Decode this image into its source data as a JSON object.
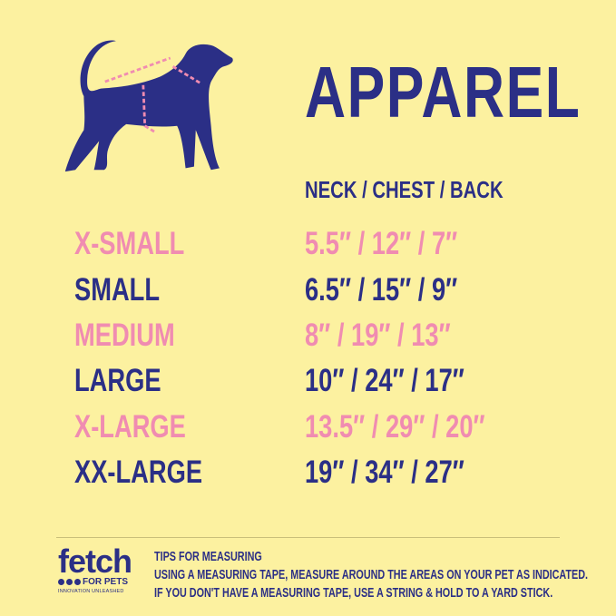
{
  "title": "APPAREL",
  "columns_header": "NECK / CHEST / BACK",
  "colors": {
    "background": "#fcf1a0",
    "navy": "#2b2f86",
    "pink": "#f08cb1"
  },
  "sizes": [
    {
      "size": "X-SMALL",
      "measurements": "5.5″ / 12″ / 7″",
      "color": "pink"
    },
    {
      "size": "SMALL",
      "measurements": "6.5″ / 15″ / 9″",
      "color": "navy"
    },
    {
      "size": "MEDIUM",
      "measurements": "8″ / 19″ / 13″",
      "color": "pink"
    },
    {
      "size": "LARGE",
      "measurements": "10″ / 24″ / 17″",
      "color": "navy"
    },
    {
      "size": "X-LARGE",
      "measurements": "13.5″ / 29″ / 20″",
      "color": "pink"
    },
    {
      "size": "XX-LARGE",
      "measurements": "19″ / 34″ / 27″",
      "color": "navy"
    }
  ],
  "logo": {
    "name": "fetch",
    "sub": "FOR PETS",
    "tagline": "INNOVATION UNLEASHED"
  },
  "tips": {
    "heading": "TIPS FOR MEASURING",
    "line1": "USING A MEASURING TAPE, MEASURE AROUND THE AREAS ON YOUR PET AS INDICATED.",
    "line2": "IF YOU DON'T HAVE A MEASURING TAPE, USE A STRING & HOLD TO A YARD STICK."
  }
}
